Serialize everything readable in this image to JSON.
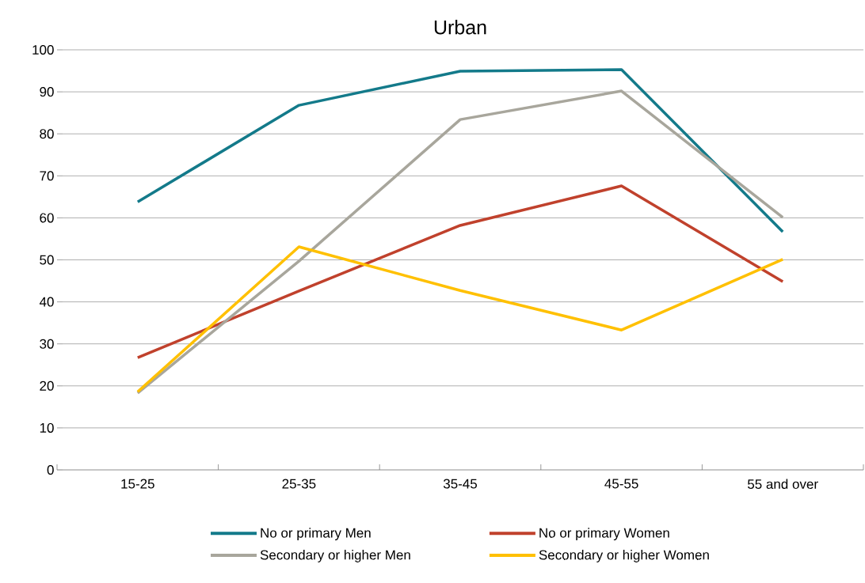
{
  "chart_data": {
    "type": "line",
    "title": "Urban",
    "categories": [
      "15-25",
      "25-35",
      "35-45",
      "45-55",
      "55 and over"
    ],
    "series": [
      {
        "name": "No or primary Men",
        "color": "#137a8a",
        "values": [
          63.8,
          86.8,
          94.9,
          95.3,
          56.7
        ]
      },
      {
        "name": "No or primary Women",
        "color": "#c0412c",
        "values": [
          26.7,
          42.6,
          58.2,
          67.6,
          44.8
        ]
      },
      {
        "name": "Secondary or higher Men",
        "color": "#a8a69c",
        "values": [
          18.3,
          49.7,
          83.4,
          90.2,
          60.1
        ]
      },
      {
        "name": "Secondary or higher Women",
        "color": "#ffc000",
        "values": [
          18.6,
          53.1,
          42.7,
          33.3,
          50.1
        ]
      }
    ],
    "ylim": [
      0,
      100
    ],
    "yticks": [
      0,
      10,
      20,
      30,
      40,
      50,
      60,
      70,
      80,
      90,
      100
    ],
    "grid": "y",
    "legend": "bottom",
    "marker": "none",
    "line_style": "solid"
  }
}
